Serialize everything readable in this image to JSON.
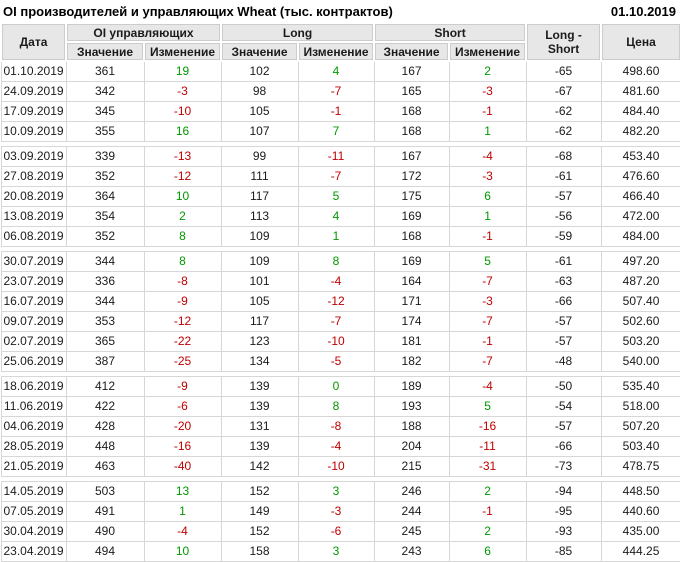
{
  "title_bar": {
    "title": "OI производителей и управляющих Wheat (тыс. контрактов)",
    "report_date": "01.10.2019"
  },
  "colors": {
    "positive": "#009900",
    "negative": "#c00000",
    "header_bg": "#e7e7e7",
    "cell_border": "#d7d7d7"
  },
  "table": {
    "headers": {
      "date": "Дата",
      "oi_group": "OI управляющих",
      "long_group": "Long",
      "short_group": "Short",
      "value": "Значение",
      "change": "Изменение",
      "long_short": "Long - Short",
      "price": "Цена"
    },
    "rows": [
      {
        "date": "01.10.2019",
        "oi": "361",
        "oi_chg": "19",
        "long": "102",
        "long_chg": "4",
        "short": "167",
        "short_chg": "2",
        "ls": "-65",
        "price": "498.60",
        "sep": false
      },
      {
        "date": "24.09.2019",
        "oi": "342",
        "oi_chg": "-3",
        "long": "98",
        "long_chg": "-7",
        "short": "165",
        "short_chg": "-3",
        "ls": "-67",
        "price": "481.60",
        "sep": false
      },
      {
        "date": "17.09.2019",
        "oi": "345",
        "oi_chg": "-10",
        "long": "105",
        "long_chg": "-1",
        "short": "168",
        "short_chg": "-1",
        "ls": "-62",
        "price": "484.40",
        "sep": false
      },
      {
        "date": "10.09.2019",
        "oi": "355",
        "oi_chg": "16",
        "long": "107",
        "long_chg": "7",
        "short": "168",
        "short_chg": "1",
        "ls": "-62",
        "price": "482.20",
        "sep": false
      },
      {
        "date": "03.09.2019",
        "oi": "339",
        "oi_chg": "-13",
        "long": "99",
        "long_chg": "-11",
        "short": "167",
        "short_chg": "-4",
        "ls": "-68",
        "price": "453.40",
        "sep": true
      },
      {
        "date": "27.08.2019",
        "oi": "352",
        "oi_chg": "-12",
        "long": "111",
        "long_chg": "-7",
        "short": "172",
        "short_chg": "-3",
        "ls": "-61",
        "price": "476.60",
        "sep": false
      },
      {
        "date": "20.08.2019",
        "oi": "364",
        "oi_chg": "10",
        "long": "117",
        "long_chg": "5",
        "short": "175",
        "short_chg": "6",
        "ls": "-57",
        "price": "466.40",
        "sep": false
      },
      {
        "date": "13.08.2019",
        "oi": "354",
        "oi_chg": "2",
        "long": "113",
        "long_chg": "4",
        "short": "169",
        "short_chg": "1",
        "ls": "-56",
        "price": "472.00",
        "sep": false
      },
      {
        "date": "06.08.2019",
        "oi": "352",
        "oi_chg": "8",
        "long": "109",
        "long_chg": "1",
        "short": "168",
        "short_chg": "-1",
        "ls": "-59",
        "price": "484.00",
        "sep": false
      },
      {
        "date": "30.07.2019",
        "oi": "344",
        "oi_chg": "8",
        "long": "109",
        "long_chg": "8",
        "short": "169",
        "short_chg": "5",
        "ls": "-61",
        "price": "497.20",
        "sep": true
      },
      {
        "date": "23.07.2019",
        "oi": "336",
        "oi_chg": "-8",
        "long": "101",
        "long_chg": "-4",
        "short": "164",
        "short_chg": "-7",
        "ls": "-63",
        "price": "487.20",
        "sep": false
      },
      {
        "date": "16.07.2019",
        "oi": "344",
        "oi_chg": "-9",
        "long": "105",
        "long_chg": "-12",
        "short": "171",
        "short_chg": "-3",
        "ls": "-66",
        "price": "507.40",
        "sep": false
      },
      {
        "date": "09.07.2019",
        "oi": "353",
        "oi_chg": "-12",
        "long": "117",
        "long_chg": "-7",
        "short": "174",
        "short_chg": "-7",
        "ls": "-57",
        "price": "502.60",
        "sep": false
      },
      {
        "date": "02.07.2019",
        "oi": "365",
        "oi_chg": "-22",
        "long": "123",
        "long_chg": "-10",
        "short": "181",
        "short_chg": "-1",
        "ls": "-57",
        "price": "503.20",
        "sep": false
      },
      {
        "date": "25.06.2019",
        "oi": "387",
        "oi_chg": "-25",
        "long": "134",
        "long_chg": "-5",
        "short": "182",
        "short_chg": "-7",
        "ls": "-48",
        "price": "540.00",
        "sep": false
      },
      {
        "date": "18.06.2019",
        "oi": "412",
        "oi_chg": "-9",
        "long": "139",
        "long_chg": "0",
        "short": "189",
        "short_chg": "-4",
        "ls": "-50",
        "price": "535.40",
        "sep": true
      },
      {
        "date": "11.06.2019",
        "oi": "422",
        "oi_chg": "-6",
        "long": "139",
        "long_chg": "8",
        "short": "193",
        "short_chg": "5",
        "ls": "-54",
        "price": "518.00",
        "sep": false
      },
      {
        "date": "04.06.2019",
        "oi": "428",
        "oi_chg": "-20",
        "long": "131",
        "long_chg": "-8",
        "short": "188",
        "short_chg": "-16",
        "ls": "-57",
        "price": "507.20",
        "sep": false
      },
      {
        "date": "28.05.2019",
        "oi": "448",
        "oi_chg": "-16",
        "long": "139",
        "long_chg": "-4",
        "short": "204",
        "short_chg": "-11",
        "ls": "-66",
        "price": "503.40",
        "sep": false
      },
      {
        "date": "21.05.2019",
        "oi": "463",
        "oi_chg": "-40",
        "long": "142",
        "long_chg": "-10",
        "short": "215",
        "short_chg": "-31",
        "ls": "-73",
        "price": "478.75",
        "sep": false
      },
      {
        "date": "14.05.2019",
        "oi": "503",
        "oi_chg": "13",
        "long": "152",
        "long_chg": "3",
        "short": "246",
        "short_chg": "2",
        "ls": "-94",
        "price": "448.50",
        "sep": true
      },
      {
        "date": "07.05.2019",
        "oi": "491",
        "oi_chg": "1",
        "long": "149",
        "long_chg": "-3",
        "short": "244",
        "short_chg": "-1",
        "ls": "-95",
        "price": "440.60",
        "sep": false
      },
      {
        "date": "30.04.2019",
        "oi": "490",
        "oi_chg": "-4",
        "long": "152",
        "long_chg": "-6",
        "short": "245",
        "short_chg": "2",
        "ls": "-93",
        "price": "435.00",
        "sep": false
      },
      {
        "date": "23.04.2019",
        "oi": "494",
        "oi_chg": "10",
        "long": "158",
        "long_chg": "3",
        "short": "243",
        "short_chg": "6",
        "ls": "-85",
        "price": "444.25",
        "sep": false
      }
    ]
  }
}
